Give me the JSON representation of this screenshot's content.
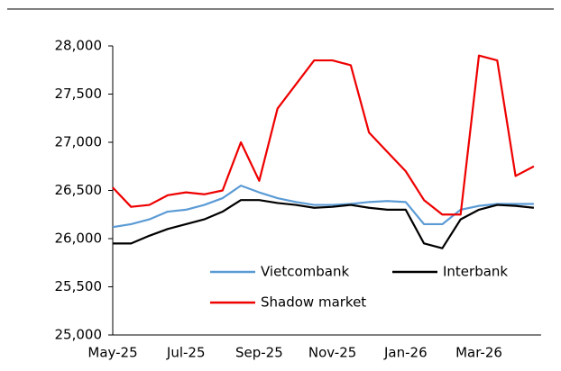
{
  "chart_data": {
    "type": "line",
    "categories": [
      "May-25",
      null,
      null,
      null,
      "Jul-25",
      null,
      null,
      null,
      "Sep-25",
      null,
      null,
      null,
      "Nov-25",
      null,
      null,
      null,
      "Jan-26",
      null,
      null,
      null,
      "Mar-26",
      null,
      null,
      null
    ],
    "series": [
      {
        "name": "Vietcombank",
        "color": "#5b9bd5",
        "values": [
          26120,
          26150,
          26200,
          26280,
          26300,
          26350,
          26420,
          26550,
          26480,
          26420,
          26380,
          26350,
          26350,
          26360,
          26380,
          26390,
          26380,
          26150,
          26150,
          26300,
          26340,
          26360,
          26360,
          26360
        ]
      },
      {
        "name": "Interbank",
        "color": "#000000",
        "values": [
          25950,
          25950,
          26030,
          26100,
          26150,
          26200,
          26280,
          26400,
          26400,
          26370,
          26350,
          26320,
          26330,
          26350,
          26320,
          26300,
          26300,
          25950,
          25900,
          26200,
          26300,
          26350,
          26340,
          26320
        ]
      },
      {
        "name": "Shadow market",
        "color": "#ee0000",
        "values": [
          26530,
          26330,
          26350,
          26450,
          26480,
          26460,
          26500,
          27000,
          26600,
          27350,
          27600,
          27850,
          27850,
          27800,
          27100,
          26900,
          26700,
          26400,
          26250,
          26250,
          27900,
          27850,
          26650,
          26750
        ]
      }
    ],
    "ylim": [
      25000,
      28000
    ],
    "yticks": [
      {
        "value": 25000,
        "label": "25,000"
      },
      {
        "value": 25500,
        "label": "25,500"
      },
      {
        "value": 26000,
        "label": "26,000"
      },
      {
        "value": 26500,
        "label": "26,500"
      },
      {
        "value": 27000,
        "label": "27,000"
      },
      {
        "value": 27500,
        "label": "27,500"
      },
      {
        "value": 28000,
        "label": "28,000"
      }
    ],
    "legend": "bottom"
  }
}
